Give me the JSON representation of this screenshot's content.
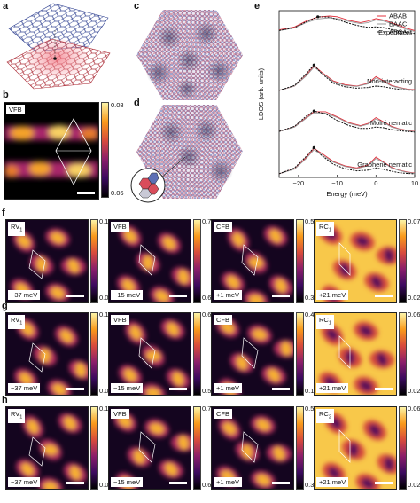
{
  "panel_labels": {
    "a": "a",
    "b": "b",
    "c": "c",
    "d": "d",
    "e": "e",
    "f": "f",
    "g": "g",
    "h": "h"
  },
  "panel_b": {
    "tag": "VFB",
    "cbar_max": "0.08",
    "cbar_min": "0.06"
  },
  "chart_data": {
    "type": "line",
    "xlabel": "Energy (meV)",
    "ylabel": "LDOS (arb. units)",
    "xlim": [
      -25,
      10
    ],
    "xticks": [
      "−20",
      "−10",
      "0",
      "10"
    ],
    "legend": [
      "ABAB",
      "BAAC",
      "ABCA"
    ],
    "legend_position": "top-right",
    "group_labels": [
      "Experiment",
      "Non-interacting",
      "Moiré nematic",
      "Graphene nematic"
    ],
    "groups": [
      {
        "label": "Experiment",
        "series": [
          {
            "name": "ABAB",
            "x": [
              -25,
              -21,
              -18,
              -15,
              -12,
              -10,
              -7,
              -4,
              -2,
              0,
              2,
              4,
              6,
              8,
              10
            ],
            "y": [
              0.62,
              0.7,
              0.86,
              0.97,
              1.0,
              0.98,
              0.88,
              0.82,
              0.86,
              0.93,
              0.89,
              0.82,
              0.74,
              0.66,
              0.6
            ]
          },
          {
            "name": "BAAC",
            "x": [
              -25,
              -21,
              -18,
              -15,
              -12,
              -10,
              -7,
              -4,
              -2,
              0,
              2,
              4,
              6,
              8,
              10
            ],
            "y": [
              0.6,
              0.67,
              0.82,
              0.92,
              0.95,
              0.93,
              0.85,
              0.79,
              0.82,
              0.89,
              0.86,
              0.79,
              0.71,
              0.63,
              0.57
            ]
          },
          {
            "name": "ABCA",
            "x": [
              -25,
              -21,
              -18,
              -15,
              -12,
              -10,
              -7,
              -4,
              -2,
              0,
              2,
              4,
              6,
              8,
              10
            ],
            "y": [
              0.6,
              0.68,
              0.84,
              0.98,
              0.97,
              0.9,
              0.8,
              0.72,
              0.69,
              0.7,
              0.68,
              0.63,
              0.58,
              0.55,
              0.52
            ]
          }
        ]
      },
      {
        "label": "Non-interacting",
        "series": [
          {
            "name": "ABAB",
            "x": [
              -25,
              -21,
              -18,
              -16,
              -14,
              -11,
              -8,
              -5,
              -2,
              0,
              2,
              4,
              6,
              8,
              10
            ],
            "y": [
              0.1,
              0.22,
              0.52,
              0.78,
              0.6,
              0.36,
              0.26,
              0.22,
              0.3,
              0.48,
              0.36,
              0.24,
              0.18,
              0.14,
              0.12
            ]
          },
          {
            "name": "BAAC",
            "x": [
              -25,
              -21,
              -18,
              -16,
              -14,
              -11,
              -8,
              -5,
              -2,
              0,
              2,
              4,
              6,
              8,
              10
            ],
            "y": [
              0.1,
              0.22,
              0.5,
              0.74,
              0.58,
              0.34,
              0.24,
              0.21,
              0.28,
              0.44,
              0.34,
              0.22,
              0.17,
              0.13,
              0.11
            ]
          },
          {
            "name": "ABCA",
            "x": [
              -25,
              -21,
              -18,
              -16,
              -14,
              -11,
              -8,
              -5,
              -2,
              0,
              2,
              4,
              6,
              8,
              10
            ],
            "y": [
              0.1,
              0.24,
              0.56,
              0.8,
              0.56,
              0.3,
              0.2,
              0.16,
              0.18,
              0.22,
              0.2,
              0.16,
              0.13,
              0.11,
              0.1
            ]
          }
        ]
      },
      {
        "label": "Moiré nematic",
        "series": [
          {
            "name": "ABAB",
            "x": [
              -25,
              -21,
              -18,
              -16,
              -13,
              -10,
              -7,
              -4,
              -2,
              0,
              2,
              4,
              6,
              8,
              10
            ],
            "y": [
              0.12,
              0.25,
              0.5,
              0.66,
              0.66,
              0.52,
              0.36,
              0.28,
              0.34,
              0.5,
              0.38,
              0.26,
              0.19,
              0.15,
              0.12
            ]
          },
          {
            "name": "BAAC",
            "x": [
              -25,
              -21,
              -18,
              -16,
              -13,
              -10,
              -7,
              -4,
              -2,
              0,
              2,
              4,
              6,
              8,
              10
            ],
            "y": [
              0.12,
              0.24,
              0.48,
              0.63,
              0.62,
              0.5,
              0.34,
              0.26,
              0.32,
              0.46,
              0.36,
              0.24,
              0.18,
              0.14,
              0.11
            ]
          },
          {
            "name": "ABCA",
            "x": [
              -25,
              -21,
              -18,
              -16,
              -13,
              -10,
              -7,
              -4,
              -2,
              0,
              2,
              4,
              6,
              8,
              10
            ],
            "y": [
              0.12,
              0.26,
              0.54,
              0.68,
              0.6,
              0.42,
              0.28,
              0.2,
              0.2,
              0.24,
              0.22,
              0.17,
              0.14,
              0.12,
              0.1
            ]
          }
        ]
      },
      {
        "label": "Graphene nematic",
        "series": [
          {
            "name": "ABAB",
            "x": [
              -25,
              -21,
              -18,
              -16,
              -14,
              -11,
              -8,
              -5,
              -2,
              0,
              2,
              4,
              6,
              8,
              10
            ],
            "y": [
              0.1,
              0.24,
              0.55,
              0.8,
              0.66,
              0.44,
              0.32,
              0.26,
              0.34,
              0.56,
              0.42,
              0.28,
              0.2,
              0.15,
              0.12
            ]
          },
          {
            "name": "BAAC",
            "x": [
              -25,
              -21,
              -18,
              -16,
              -14,
              -11,
              -8,
              -5,
              -2,
              0,
              2,
              4,
              6,
              8,
              10
            ],
            "y": [
              0.1,
              0.23,
              0.52,
              0.76,
              0.62,
              0.42,
              0.3,
              0.24,
              0.32,
              0.52,
              0.4,
              0.26,
              0.19,
              0.14,
              0.11
            ]
          },
          {
            "name": "ABCA",
            "x": [
              -25,
              -21,
              -18,
              -16,
              -14,
              -11,
              -8,
              -5,
              -2,
              0,
              2,
              4,
              6,
              8,
              10
            ],
            "y": [
              0.1,
              0.26,
              0.58,
              0.82,
              0.6,
              0.36,
              0.24,
              0.18,
              0.2,
              0.26,
              0.22,
              0.17,
              0.13,
              0.11,
              0.1
            ]
          }
        ]
      }
    ]
  },
  "colors": {
    "ABAB": "#e0303c",
    "BAAC": "#9a9a9a",
    "ABCA": "#111111"
  },
  "rows": [
    {
      "label": "f",
      "panels": [
        {
          "tag": "RV",
          "sub": "1",
          "energy": "−37 meV",
          "cmax": "0.12",
          "cmin": "0.04"
        },
        {
          "tag": "VFB",
          "sub": "",
          "energy": "−15 meV",
          "cmax": "0.76",
          "cmin": "0.68"
        },
        {
          "tag": "CFB",
          "sub": "",
          "energy": "+1 meV",
          "cmax": "0.57",
          "cmin": "0.34"
        },
        {
          "tag": "RC",
          "sub": "1",
          "energy": "+21 meV",
          "cmax": "0.07",
          "cmin": "0.02"
        }
      ]
    },
    {
      "label": "g",
      "panels": [
        {
          "tag": "RV",
          "sub": "1",
          "energy": "−37 meV",
          "cmax": "0.12",
          "cmin": "0.04"
        },
        {
          "tag": "VFB",
          "sub": "",
          "energy": "−15 meV",
          "cmax": "0.68",
          "cmin": "0.58"
        },
        {
          "tag": "CFB",
          "sub": "",
          "energy": "+1 meV",
          "cmax": "0.40",
          "cmin": "0.19"
        },
        {
          "tag": "RC",
          "sub": "1",
          "energy": "+21 meV",
          "cmax": "0.06",
          "cmin": "0.02"
        }
      ]
    },
    {
      "label": "h",
      "panels": [
        {
          "tag": "RV",
          "sub": "1",
          "energy": "−37 meV",
          "cmax": "0.12",
          "cmin": "0.04"
        },
        {
          "tag": "VFB",
          "sub": "",
          "energy": "−15 meV",
          "cmax": "0.76",
          "cmin": "0.68"
        },
        {
          "tag": "CFB",
          "sub": "",
          "energy": "+1 meV",
          "cmax": "0.58",
          "cmin": "0.34"
        },
        {
          "tag": "RC",
          "sub": "2",
          "energy": "+21 meV",
          "cmax": "0.06",
          "cmin": "0.02"
        }
      ]
    }
  ]
}
